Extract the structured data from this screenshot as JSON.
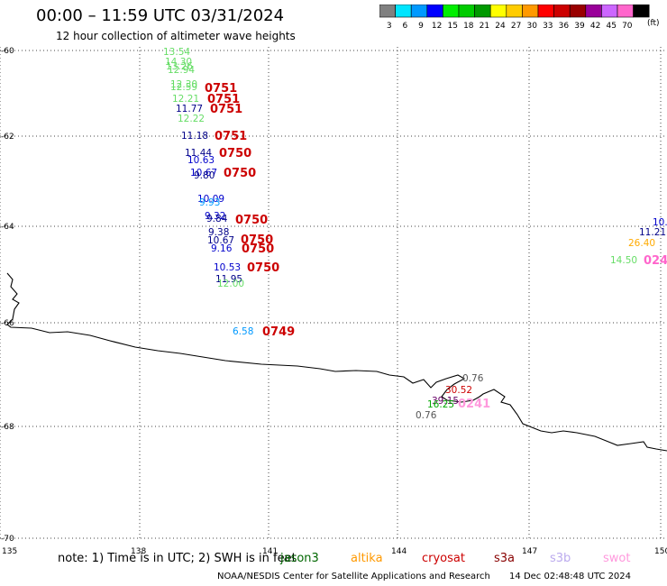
{
  "title": "00:00 – 11:59 UTC 03/31/2024",
  "subtitle": "12 hour collection of altimeter wave heights",
  "colorbar": {
    "unit": "(ft)",
    "bins": [
      {
        "label": "3",
        "color": "#808080"
      },
      {
        "label": "6",
        "color": "#00e5ff"
      },
      {
        "label": "9",
        "color": "#0099ff"
      },
      {
        "label": "12",
        "color": "#0000ff"
      },
      {
        "label": "15",
        "color": "#00ee00"
      },
      {
        "label": "18",
        "color": "#00cc00"
      },
      {
        "label": "21",
        "color": "#009900"
      },
      {
        "label": "24",
        "color": "#ffff00"
      },
      {
        "label": "27",
        "color": "#ffcc00"
      },
      {
        "label": "30",
        "color": "#ff9900"
      },
      {
        "label": "33",
        "color": "#ff0000"
      },
      {
        "label": "36",
        "color": "#cc0000"
      },
      {
        "label": "39",
        "color": "#990000"
      },
      {
        "label": "42",
        "color": "#990099"
      },
      {
        "label": "45",
        "color": "#cc66ff"
      },
      {
        "label": "70",
        "color": "#ff66cc"
      },
      {
        "label": "",
        "color": "#000000"
      }
    ]
  },
  "axes": {
    "lon_ticks": [
      "135",
      "138",
      "141",
      "144",
      "147",
      "150"
    ],
    "lat_ticks": [
      "-60",
      "-62",
      "-64",
      "-66",
      "-68",
      "-70"
    ],
    "lon_range": [
      135,
      150
    ],
    "lat_range": [
      -70,
      -60
    ]
  },
  "note": "note: 1) Time is in UTC; 2) SWH is in feet",
  "satellites": [
    {
      "name": "jason3",
      "color": "#006600"
    },
    {
      "name": "altika",
      "color": "#ff9900"
    },
    {
      "name": "cryosat",
      "color": "#cc0000"
    },
    {
      "name": "s3a",
      "color": "#880000"
    },
    {
      "name": "s3b",
      "color": "#bbaaee"
    },
    {
      "name": "swot",
      "color": "#ff99dd"
    }
  ],
  "credit": "NOAA/NESDIS Center for Satellite Applications and Research",
  "timestamp": "14 Dec 02:48:48 UTC 2024",
  "wave_labels": [
    {
      "text": "13.54",
      "color": "#66dd66"
    },
    {
      "text": "14.30",
      "color": "#66dd66"
    },
    {
      "text": "13.26",
      "color": "#66dd66"
    },
    {
      "text": "12.94",
      "color": "#66dd66"
    },
    {
      "text": "12.30",
      "color": "#66dd66"
    },
    {
      "text": "12.59",
      "color": "#66dd66"
    },
    {
      "text": "12.21",
      "color": "#66dd66"
    },
    {
      "text": "11.77",
      "color": "#000088"
    },
    {
      "text": "12.22",
      "color": "#66dd66"
    },
    {
      "text": "11.18",
      "color": "#000088"
    },
    {
      "text": "11.44",
      "color": "#000088"
    },
    {
      "text": "10.63",
      "color": "#0000cc"
    },
    {
      "text": "10.67",
      "color": "#0000cc"
    },
    {
      "text": "9.80",
      "color": "#000088"
    },
    {
      "text": "10.09",
      "color": "#0000cc"
    },
    {
      "text": "9.93",
      "color": "#0099ff"
    },
    {
      "text": "9.32",
      "color": "#0000cc"
    },
    {
      "text": "9.84",
      "color": "#000088"
    },
    {
      "text": "9.38",
      "color": "#000088"
    },
    {
      "text": "10.67",
      "color": "#000088"
    },
    {
      "text": "9.16",
      "color": "#0000cc"
    },
    {
      "text": "10.53",
      "color": "#0000cc"
    },
    {
      "text": "11.95",
      "color": "#000088"
    },
    {
      "text": "12.00",
      "color": "#66dd66"
    },
    {
      "text": "6.58",
      "color": "#0099ff"
    },
    {
      "text": "10.4",
      "color": "#0000cc"
    },
    {
      "text": "11.21",
      "color": "#000088"
    },
    {
      "text": "26.40",
      "color": "#ffaa00"
    },
    {
      "text": "14.50",
      "color": "#66dd66"
    },
    {
      "text": "0.76",
      "color": "#555555"
    },
    {
      "text": "30.52",
      "color": "#cc0000"
    },
    {
      "text": "39.15",
      "color": "#660066"
    },
    {
      "text": "16.25",
      "color": "#00aa00"
    },
    {
      "text": "0.76",
      "color": "#555555"
    }
  ],
  "time_labels": [
    {
      "text": "0751",
      "color": "#cc0000"
    },
    {
      "text": "0751",
      "color": "#cc0000"
    },
    {
      "text": "0751",
      "color": "#cc0000"
    },
    {
      "text": "0751",
      "color": "#cc0000"
    },
    {
      "text": "0750",
      "color": "#cc0000"
    },
    {
      "text": "0750",
      "color": "#cc0000"
    },
    {
      "text": "0750",
      "color": "#cc0000"
    },
    {
      "text": "0750",
      "color": "#cc0000"
    },
    {
      "text": "0750",
      "color": "#cc0000"
    },
    {
      "text": "0750",
      "color": "#cc0000"
    },
    {
      "text": "0749",
      "color": "#cc0000"
    },
    {
      "text": "024",
      "color": "#ff66cc"
    },
    {
      "text": "0241",
      "color": "#ff99dd"
    }
  ]
}
